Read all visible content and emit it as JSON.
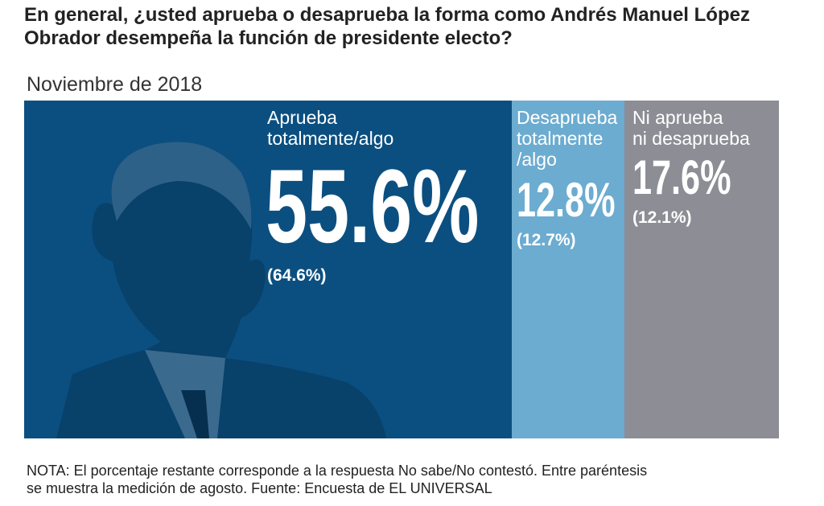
{
  "title": "En general, ¿usted aprueba o desaprueba la forma como Andrés Manuel López Obrador desempeña la función de presidente electo?",
  "subtitle": "Noviembre de 2018",
  "note_line1": "NOTA: El porcentaje restante corresponde  a la respuesta No sabe/No contestó. Entre paréntesis",
  "note_line2": "se muestra  la medición de agosto. Fuente: Encuesta de EL UNIVERSAL",
  "chart_data": {
    "type": "bar",
    "orientation": "horizontal-stacked",
    "categories": [
      "Aprueba totalmente/algo",
      "Desaprueba totalmente/algo",
      "Ni aprueba ni desaprueba"
    ],
    "values": [
      55.6,
      12.8,
      17.6
    ],
    "labels": [
      "55.6%",
      "12.8%",
      "17.6%"
    ],
    "previous_values": [
      64.6,
      12.7,
      12.1
    ],
    "previous_labels": [
      "(64.6%)",
      "(12.7%)",
      "(12.1%)"
    ],
    "category_lines": [
      [
        "Aprueba",
        "totalmente/algo"
      ],
      [
        "Desaprueba",
        "totalmente",
        "/algo"
      ],
      [
        "Ni aprueba",
        "ni desaprueba"
      ]
    ],
    "colors": [
      "#0b4f80",
      "#6cacd0",
      "#8d8d95"
    ],
    "xlim": [
      0,
      100
    ]
  }
}
